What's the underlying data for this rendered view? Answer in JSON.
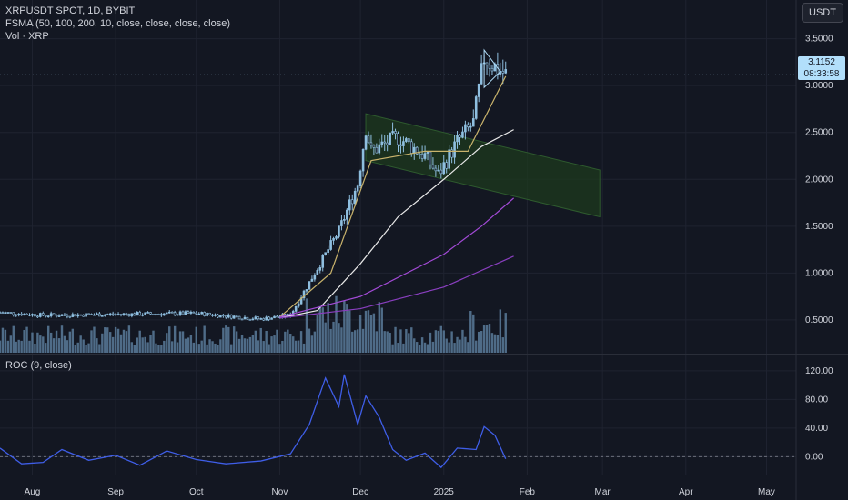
{
  "header": {
    "title": "XRPUSDT SPOT, 1D, BYBIT",
    "fsma_label": "FSMA (50, 100, 200, 10, close, close, close, close)",
    "vol_label": "Vol · XRP",
    "currency": "USDT"
  },
  "price_tag": {
    "price": "3.1152",
    "countdown": "08:33:58"
  },
  "roc_label": "ROC (9, close)",
  "colors": {
    "background": "#131722",
    "candle": "#8fbfe0",
    "volume": "#5b7b9a",
    "ma10": "#c9b36c",
    "ma50": "#e8e8e8",
    "ma100": "#a24ad6",
    "ma200": "#8a3fc0",
    "roc": "#3f5ee8",
    "channel_fill": "#1e3a1e"
  },
  "chart_data": [
    {
      "type": "candlestick",
      "title": "XRPUSDT SPOT, 1D, BYBIT",
      "y_ticks": [
        "3.5000",
        "3.0000",
        "2.5000",
        "2.0000",
        "1.5000",
        "1.0000",
        "0.5000"
      ],
      "y_tick_values": [
        3.5,
        3.0,
        2.5,
        2.0,
        1.5,
        1.0,
        0.5
      ],
      "ylim": [
        0.15,
        3.7
      ],
      "x_ticks": [
        "Aug",
        "Sep",
        "Oct",
        "Nov",
        "Dec",
        "2025",
        "Feb",
        "Mar",
        "Apr",
        "May"
      ],
      "x_tick_dates": [
        "2024-08-01",
        "2024-09-01",
        "2024-10-01",
        "2024-11-01",
        "2024-12-01",
        "2025-01-01",
        "2025-02-01",
        "2025-03-01",
        "2025-04-01",
        "2025-05-01"
      ],
      "date_range": [
        "2024-07-20",
        "2025-05-12"
      ],
      "key_closes": [
        {
          "date": "2024-07-20",
          "close": 0.58
        },
        {
          "date": "2024-08-05",
          "close": 0.55
        },
        {
          "date": "2024-09-01",
          "close": 0.56
        },
        {
          "date": "2024-10-01",
          "close": 0.57
        },
        {
          "date": "2024-10-25",
          "close": 0.51
        },
        {
          "date": "2024-11-05",
          "close": 0.55
        },
        {
          "date": "2024-11-12",
          "close": 0.9
        },
        {
          "date": "2024-11-16",
          "close": 1.1
        },
        {
          "date": "2024-11-23",
          "close": 1.45
        },
        {
          "date": "2024-11-30",
          "close": 1.95
        },
        {
          "date": "2024-12-03",
          "close": 2.55
        },
        {
          "date": "2024-12-05",
          "close": 2.3
        },
        {
          "date": "2024-12-15",
          "close": 2.45
        },
        {
          "date": "2024-12-25",
          "close": 2.25
        },
        {
          "date": "2024-12-30",
          "close": 2.05
        },
        {
          "date": "2025-01-06",
          "close": 2.4
        },
        {
          "date": "2025-01-12",
          "close": 2.6
        },
        {
          "date": "2025-01-16",
          "close": 3.3
        },
        {
          "date": "2025-01-20",
          "close": 3.2
        },
        {
          "date": "2025-01-24",
          "close": 3.12
        }
      ],
      "last_price": 3.1152,
      "moving_averages": [
        {
          "period": 10,
          "points": [
            {
              "date": "2024-11-01",
              "v": 0.53
            },
            {
              "date": "2024-11-20",
              "v": 1.0
            },
            {
              "date": "2024-12-05",
              "v": 2.2
            },
            {
              "date": "2024-12-25",
              "v": 2.3
            },
            {
              "date": "2025-01-10",
              "v": 2.3
            },
            {
              "date": "2025-01-24",
              "v": 3.1
            }
          ]
        },
        {
          "period": 50,
          "points": [
            {
              "date": "2024-11-01",
              "v": 0.52
            },
            {
              "date": "2024-11-15",
              "v": 0.6
            },
            {
              "date": "2024-12-01",
              "v": 1.1
            },
            {
              "date": "2024-12-15",
              "v": 1.6
            },
            {
              "date": "2025-01-01",
              "v": 2.0
            },
            {
              "date": "2025-01-15",
              "v": 2.35
            },
            {
              "date": "2025-01-27",
              "v": 2.53
            }
          ]
        },
        {
          "period": 100,
          "points": [
            {
              "date": "2024-11-01",
              "v": 0.53
            },
            {
              "date": "2024-12-01",
              "v": 0.75
            },
            {
              "date": "2025-01-01",
              "v": 1.2
            },
            {
              "date": "2025-01-15",
              "v": 1.5
            },
            {
              "date": "2025-01-27",
              "v": 1.8
            }
          ]
        },
        {
          "period": 200,
          "points": [
            {
              "date": "2024-11-01",
              "v": 0.52
            },
            {
              "date": "2024-12-01",
              "v": 0.62
            },
            {
              "date": "2025-01-01",
              "v": 0.85
            },
            {
              "date": "2025-01-27",
              "v": 1.18
            }
          ]
        }
      ],
      "annotations": {
        "descending_channel": {
          "upper": [
            {
              "date": "2024-12-03",
              "v": 2.7
            },
            {
              "date": "2025-02-28",
              "v": 2.1
            }
          ],
          "lower": [
            {
              "date": "2024-12-03",
              "v": 2.2
            },
            {
              "date": "2025-02-28",
              "v": 1.6
            }
          ]
        },
        "triangle": [
          {
            "date": "2025-01-16",
            "v": 3.38
          },
          {
            "date": "2025-01-22",
            "v": 3.15
          },
          {
            "date": "2025-01-16",
            "v": 2.98
          }
        ]
      },
      "series": [
        {
          "name": "Vol · XRP"
        }
      ]
    },
    {
      "type": "line",
      "title": "ROC (9, close)",
      "y_ticks": [
        "120.00",
        "80.00",
        "40.00",
        "0.00"
      ],
      "y_tick_values": [
        120,
        80,
        40,
        0
      ],
      "ylim": [
        -25,
        125
      ],
      "points": [
        {
          "date": "2024-07-20",
          "v": 12
        },
        {
          "date": "2024-07-28",
          "v": -10
        },
        {
          "date": "2024-08-05",
          "v": -8
        },
        {
          "date": "2024-08-12",
          "v": 10
        },
        {
          "date": "2024-08-22",
          "v": -5
        },
        {
          "date": "2024-09-01",
          "v": 2
        },
        {
          "date": "2024-09-10",
          "v": -12
        },
        {
          "date": "2024-09-20",
          "v": 8
        },
        {
          "date": "2024-10-01",
          "v": -4
        },
        {
          "date": "2024-10-12",
          "v": -10
        },
        {
          "date": "2024-10-25",
          "v": -6
        },
        {
          "date": "2024-11-05",
          "v": 4
        },
        {
          "date": "2024-11-12",
          "v": 45
        },
        {
          "date": "2024-11-18",
          "v": 110
        },
        {
          "date": "2024-11-23",
          "v": 70
        },
        {
          "date": "2024-11-25",
          "v": 115
        },
        {
          "date": "2024-11-30",
          "v": 45
        },
        {
          "date": "2024-12-03",
          "v": 85
        },
        {
          "date": "2024-12-08",
          "v": 55
        },
        {
          "date": "2024-12-13",
          "v": 10
        },
        {
          "date": "2024-12-18",
          "v": -5
        },
        {
          "date": "2024-12-25",
          "v": 5
        },
        {
          "date": "2024-12-31",
          "v": -15
        },
        {
          "date": "2025-01-06",
          "v": 12
        },
        {
          "date": "2025-01-13",
          "v": 10
        },
        {
          "date": "2025-01-16",
          "v": 42
        },
        {
          "date": "2025-01-20",
          "v": 30
        },
        {
          "date": "2025-01-24",
          "v": -3
        }
      ]
    }
  ]
}
